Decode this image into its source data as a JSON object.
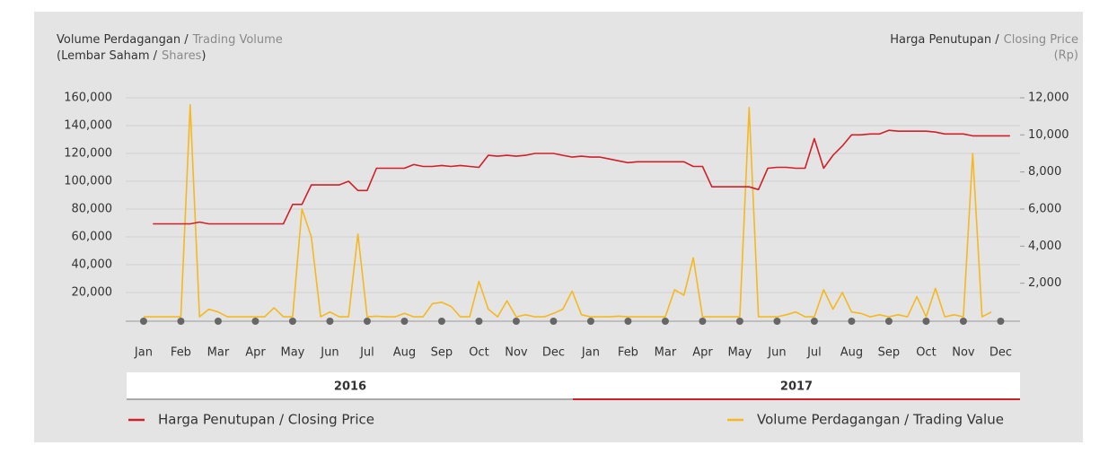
{
  "chart_data": {
    "type": "line",
    "y_label": [
      "Volume Perdagangan /",
      "Trading Volume"
    ],
    "y_unit": [
      "(Lembar Saham /",
      "Shares",
      ")"
    ],
    "y2_label": [
      "Harga Penutupan /",
      "Closing Price"
    ],
    "y2_unit": "(Rp)",
    "years": [
      "2016",
      "2017"
    ],
    "categories": [
      null,
      null,
      "Jan",
      null,
      null,
      null,
      "Feb",
      null,
      null,
      null,
      "Mar",
      null,
      null,
      null,
      "Apr",
      null,
      null,
      null,
      "May",
      null,
      null,
      null,
      "Jun",
      null,
      null,
      null,
      "Jul",
      null,
      null,
      null,
      "Aug",
      null,
      null,
      null,
      "Sep",
      null,
      null,
      null,
      "Oct",
      null,
      null,
      null,
      "Nov",
      null,
      null,
      null,
      "Dec",
      null,
      null,
      null,
      "Jan",
      null,
      null,
      null,
      "Feb",
      null,
      null,
      null,
      "Mar",
      null,
      null,
      null,
      "Apr",
      null,
      null,
      null,
      "May",
      null,
      null,
      null,
      "Jun",
      null,
      null,
      null,
      "Jul",
      null,
      null,
      null,
      "Aug",
      null,
      null,
      null,
      "Sep",
      null,
      null,
      null,
      "Oct",
      null,
      null,
      null,
      "Nov",
      null,
      null,
      null,
      "Dec",
      null
    ],
    "series": [
      {
        "name": "Harga Penutupan / Closing Price",
        "color": "#d0202a",
        "axis": "y2",
        "values": [
          null,
          null,
          null,
          5200,
          5200,
          5200,
          5200,
          5200,
          5300,
          5200,
          5200,
          5200,
          5200,
          5200,
          5200,
          5200,
          5200,
          5200,
          6250,
          6250,
          7300,
          7300,
          7300,
          7300,
          7500,
          7000,
          7000,
          8200,
          8200,
          8200,
          8200,
          8400,
          8300,
          8300,
          8350,
          8300,
          8350,
          8300,
          8250,
          8900,
          8850,
          8900,
          8850,
          8900,
          9000,
          9000,
          9000,
          8900,
          8800,
          8850,
          8800,
          8800,
          8700,
          8600,
          8500,
          8550,
          8550,
          8550,
          8550,
          8550,
          8550,
          8300,
          8300,
          7200,
          7200,
          7200,
          7200,
          7200,
          7050,
          8200,
          8250,
          8250,
          8200,
          8200,
          9800,
          8200,
          8900,
          9400,
          10000,
          10000,
          10050,
          10050,
          10250,
          10200,
          10200,
          10200,
          10200,
          10150,
          10050,
          10050,
          10050,
          9950,
          9950,
          9950,
          9950,
          9950
        ]
      },
      {
        "name": "Volume Perdagangan / Trading Value",
        "color": "#f5b820",
        "values": [
          null,
          null,
          2500,
          2500,
          2500,
          2500,
          2500,
          155000,
          2500,
          8000,
          6000,
          2500,
          2500,
          2500,
          2500,
          2500,
          9000,
          2500,
          2500,
          80000,
          60000,
          2500,
          6000,
          2500,
          2500,
          62000,
          2500,
          3000,
          2500,
          2500,
          5000,
          2500,
          2500,
          12000,
          13000,
          10000,
          2500,
          2500,
          28000,
          8000,
          2500,
          14000,
          2500,
          4000,
          2500,
          2500,
          5000,
          8000,
          21000,
          4000,
          2500,
          2500,
          2500,
          3000,
          2500,
          2500,
          2500,
          2500,
          2500,
          22000,
          18000,
          45000,
          2500,
          2500,
          2500,
          2500,
          2500,
          153000,
          2500,
          2500,
          2500,
          4000,
          6000,
          2500,
          2500,
          22000,
          8000,
          20000,
          6000,
          5000,
          2500,
          4000,
          2500,
          4000,
          2500,
          17000,
          2500,
          23000,
          2500,
          4000,
          2500,
          120000,
          2500,
          6000,
          null,
          null
        ]
      }
    ],
    "ylim": [
      0,
      160000
    ],
    "yticks": [
      {
        "value": 20000,
        "label": "20,000"
      },
      {
        "value": 40000,
        "label": "40,000"
      },
      {
        "value": 60000,
        "label": "60,000"
      },
      {
        "value": 80000,
        "label": "80,000"
      },
      {
        "value": 100000,
        "label": "100,000"
      },
      {
        "value": 120000,
        "label": "120,000"
      },
      {
        "value": 140000,
        "label": "140,000"
      },
      {
        "value": 160000,
        "label": "160,000"
      }
    ],
    "y2lim": [
      0,
      12000
    ],
    "y2ticks": [
      {
        "value": 2000,
        "label": "2,000"
      },
      {
        "value": 4000,
        "label": "4,000"
      },
      {
        "value": 6000,
        "label": "6,000"
      },
      {
        "value": 8000,
        "label": "8,000"
      },
      {
        "value": 10000,
        "label": "10,000"
      },
      {
        "value": 12000,
        "label": "12,000"
      }
    ],
    "grid": true
  }
}
